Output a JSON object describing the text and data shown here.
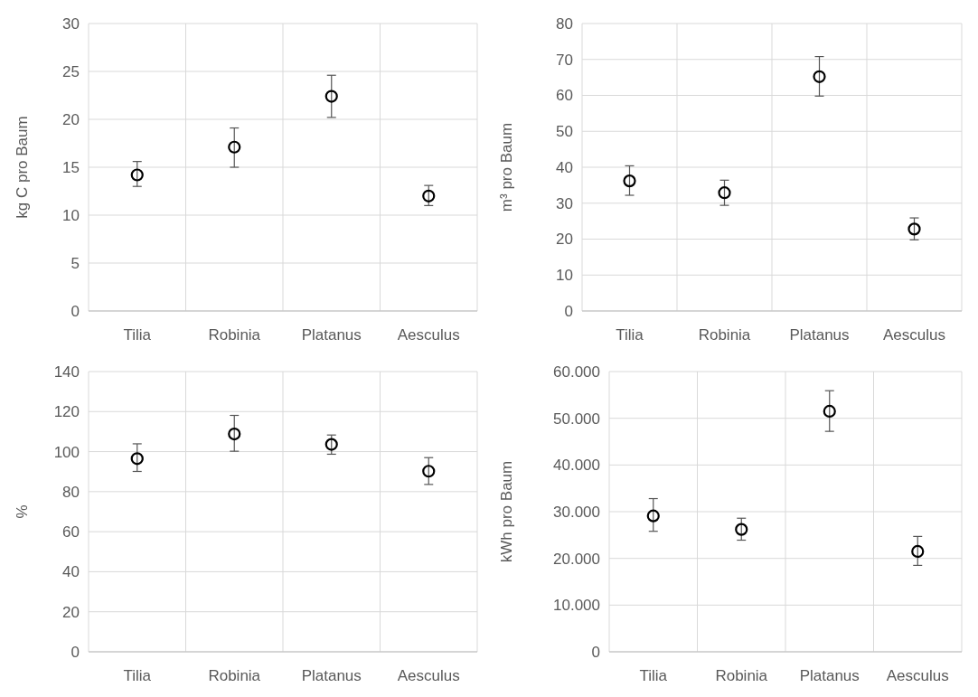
{
  "chart_data": [
    {
      "type": "scatter",
      "ylabel": "kg C pro Baum",
      "categories": [
        "Tilia",
        "Robinia",
        "Platanus",
        "Aesculus"
      ],
      "ylim": [
        0,
        30
      ],
      "yticks": [
        0,
        5,
        10,
        15,
        20,
        25,
        30
      ],
      "grid": true,
      "marker": "circle",
      "series": [
        {
          "color": "#000000",
          "values": [
            14.2,
            17.1,
            22.4,
            12.0
          ],
          "errors": [
            [
              13.0,
              15.6
            ],
            [
              15.0,
              19.1
            ],
            [
              20.2,
              24.6
            ],
            [
              11.0,
              13.1
            ]
          ]
        }
      ]
    },
    {
      "type": "scatter",
      "ylabel": "m³ pro Baum",
      "categories": [
        "Tilia",
        "Robinia",
        "Platanus",
        "Aesculus"
      ],
      "ylim": [
        0,
        80
      ],
      "yticks": [
        0,
        10,
        20,
        30,
        40,
        50,
        60,
        70,
        80
      ],
      "grid": true,
      "marker": "circle",
      "series": [
        {
          "color": "#000000",
          "values": [
            36.2,
            32.9,
            65.2,
            22.8
          ],
          "errors": [
            [
              32.2,
              40.4
            ],
            [
              29.4,
              36.4
            ],
            [
              59.8,
              70.8
            ],
            [
              19.8,
              25.9
            ]
          ]
        }
      ]
    },
    {
      "type": "scatter",
      "ylabel": "%",
      "categories": [
        "Tilia",
        "Robinia",
        "Platanus",
        "Aesculus"
      ],
      "ylim": [
        0,
        140
      ],
      "yticks": [
        0,
        20,
        40,
        60,
        80,
        100,
        120,
        140
      ],
      "grid": true,
      "marker": "circle",
      "series": [
        {
          "color": "#000000",
          "values": [
            96.5,
            108.8,
            103.6,
            90.2
          ],
          "errors": [
            [
              90.1,
              103.9
            ],
            [
              100.2,
              118.1
            ],
            [
              98.7,
              108.3
            ],
            [
              83.6,
              97.0
            ]
          ]
        }
      ]
    },
    {
      "type": "scatter",
      "ylabel": "kWh pro Baum",
      "categories": [
        "Tilia",
        "Robinia",
        "Platanus",
        "Aesculus"
      ],
      "ylim": [
        0,
        60000
      ],
      "yticks": [
        0,
        {
          "value": 10000,
          "label": "10.000"
        },
        {
          "value": 20000,
          "label": "20.000"
        },
        {
          "value": 30000,
          "label": "30.000"
        },
        {
          "value": 40000,
          "label": "40.000"
        },
        {
          "value": 50000,
          "label": "50.000"
        },
        {
          "value": 60000,
          "label": "60.000"
        }
      ],
      "grid": true,
      "marker": "circle",
      "series": [
        {
          "color": "#000000",
          "values": [
            29100,
            26200,
            51500,
            21500
          ],
          "errors": [
            [
              25800,
              32800
            ],
            [
              23900,
              28600
            ],
            [
              47200,
              55900
            ],
            [
              18500,
              24700
            ]
          ]
        }
      ]
    }
  ]
}
